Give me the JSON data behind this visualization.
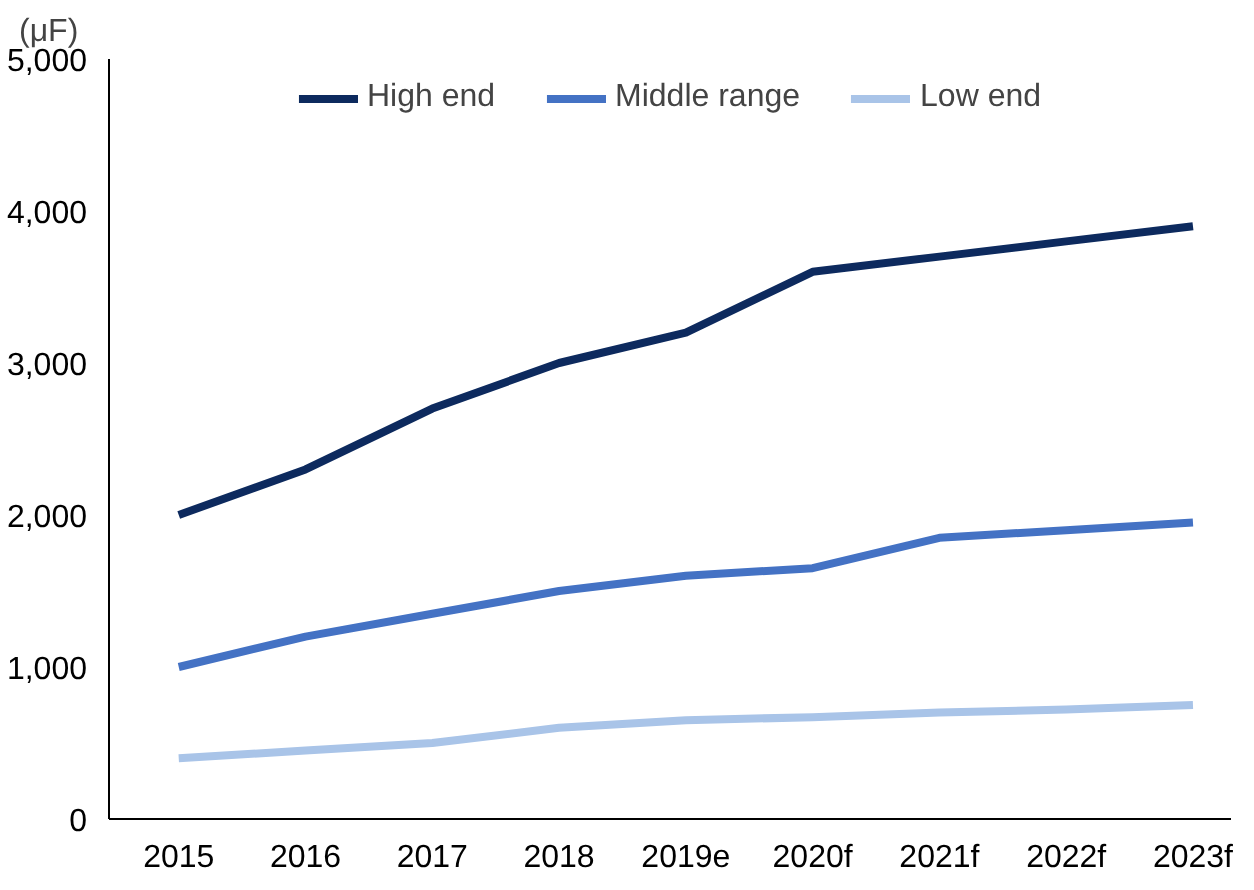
{
  "chart_data": {
    "type": "line",
    "ylabel": "(μF)",
    "categories": [
      "2015",
      "2016",
      "2017",
      "2018",
      "2019e",
      "2020f",
      "2021f",
      "2022f",
      "2023f"
    ],
    "series": [
      {
        "name": "High end",
        "color": "#0d2a5e",
        "values": [
          2000,
          2300,
          2700,
          3000,
          3200,
          3600,
          3700,
          3800,
          3900
        ]
      },
      {
        "name": "Middle range",
        "color": "#4472c4",
        "values": [
          1000,
          1200,
          1350,
          1500,
          1600,
          1650,
          1850,
          1900,
          1950
        ]
      },
      {
        "name": "Low end",
        "color": "#a9c4e8",
        "values": [
          400,
          450,
          500,
          600,
          650,
          670,
          700,
          720,
          750
        ]
      }
    ],
    "ylim": [
      0,
      5000
    ],
    "yticks": [
      0,
      {
        "value": 1000,
        "label": "1,000"
      },
      {
        "value": 2000,
        "label": "2,000"
      },
      {
        "value": 3000,
        "label": "3,000"
      },
      {
        "value": 4000,
        "label": "4,000"
      },
      {
        "value": 5000,
        "label": "5,000"
      }
    ],
    "grid": false,
    "legend": "top",
    "marker": "none",
    "line_style": "solid"
  }
}
